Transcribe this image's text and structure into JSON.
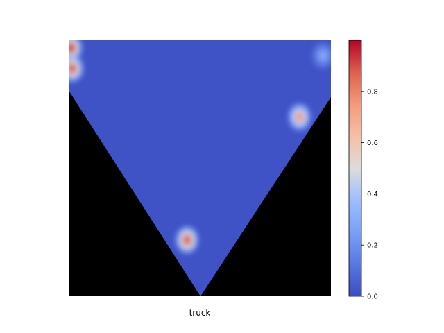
{
  "chart_data": {
    "type": "heatmap",
    "title": "",
    "xlabel": "truck",
    "ylabel": "",
    "colormap": "coolwarm",
    "colorbar": {
      "range": [
        0.0,
        1.0
      ],
      "ticks": [
        0.0,
        0.2,
        0.4,
        0.6,
        0.8
      ],
      "tick_labels": [
        "0.0",
        "0.2",
        "0.4",
        "0.6",
        "0.8"
      ]
    },
    "background_value": 0.02,
    "masked_region": "outside downward-pointing triangle (black)",
    "hotspots": [
      {
        "label": "top-left edge",
        "u": 0.005,
        "v": 0.03,
        "intensity": 0.95
      },
      {
        "label": "upper-left",
        "u": 0.01,
        "v": 0.11,
        "intensity": 0.9
      },
      {
        "label": "right side",
        "u": 0.88,
        "v": 0.3,
        "intensity": 0.75
      },
      {
        "label": "lower center",
        "u": 0.45,
        "v": 0.78,
        "intensity": 0.9
      },
      {
        "label": "top-right corner",
        "u": 0.97,
        "v": 0.06,
        "intensity": 0.3
      }
    ]
  }
}
